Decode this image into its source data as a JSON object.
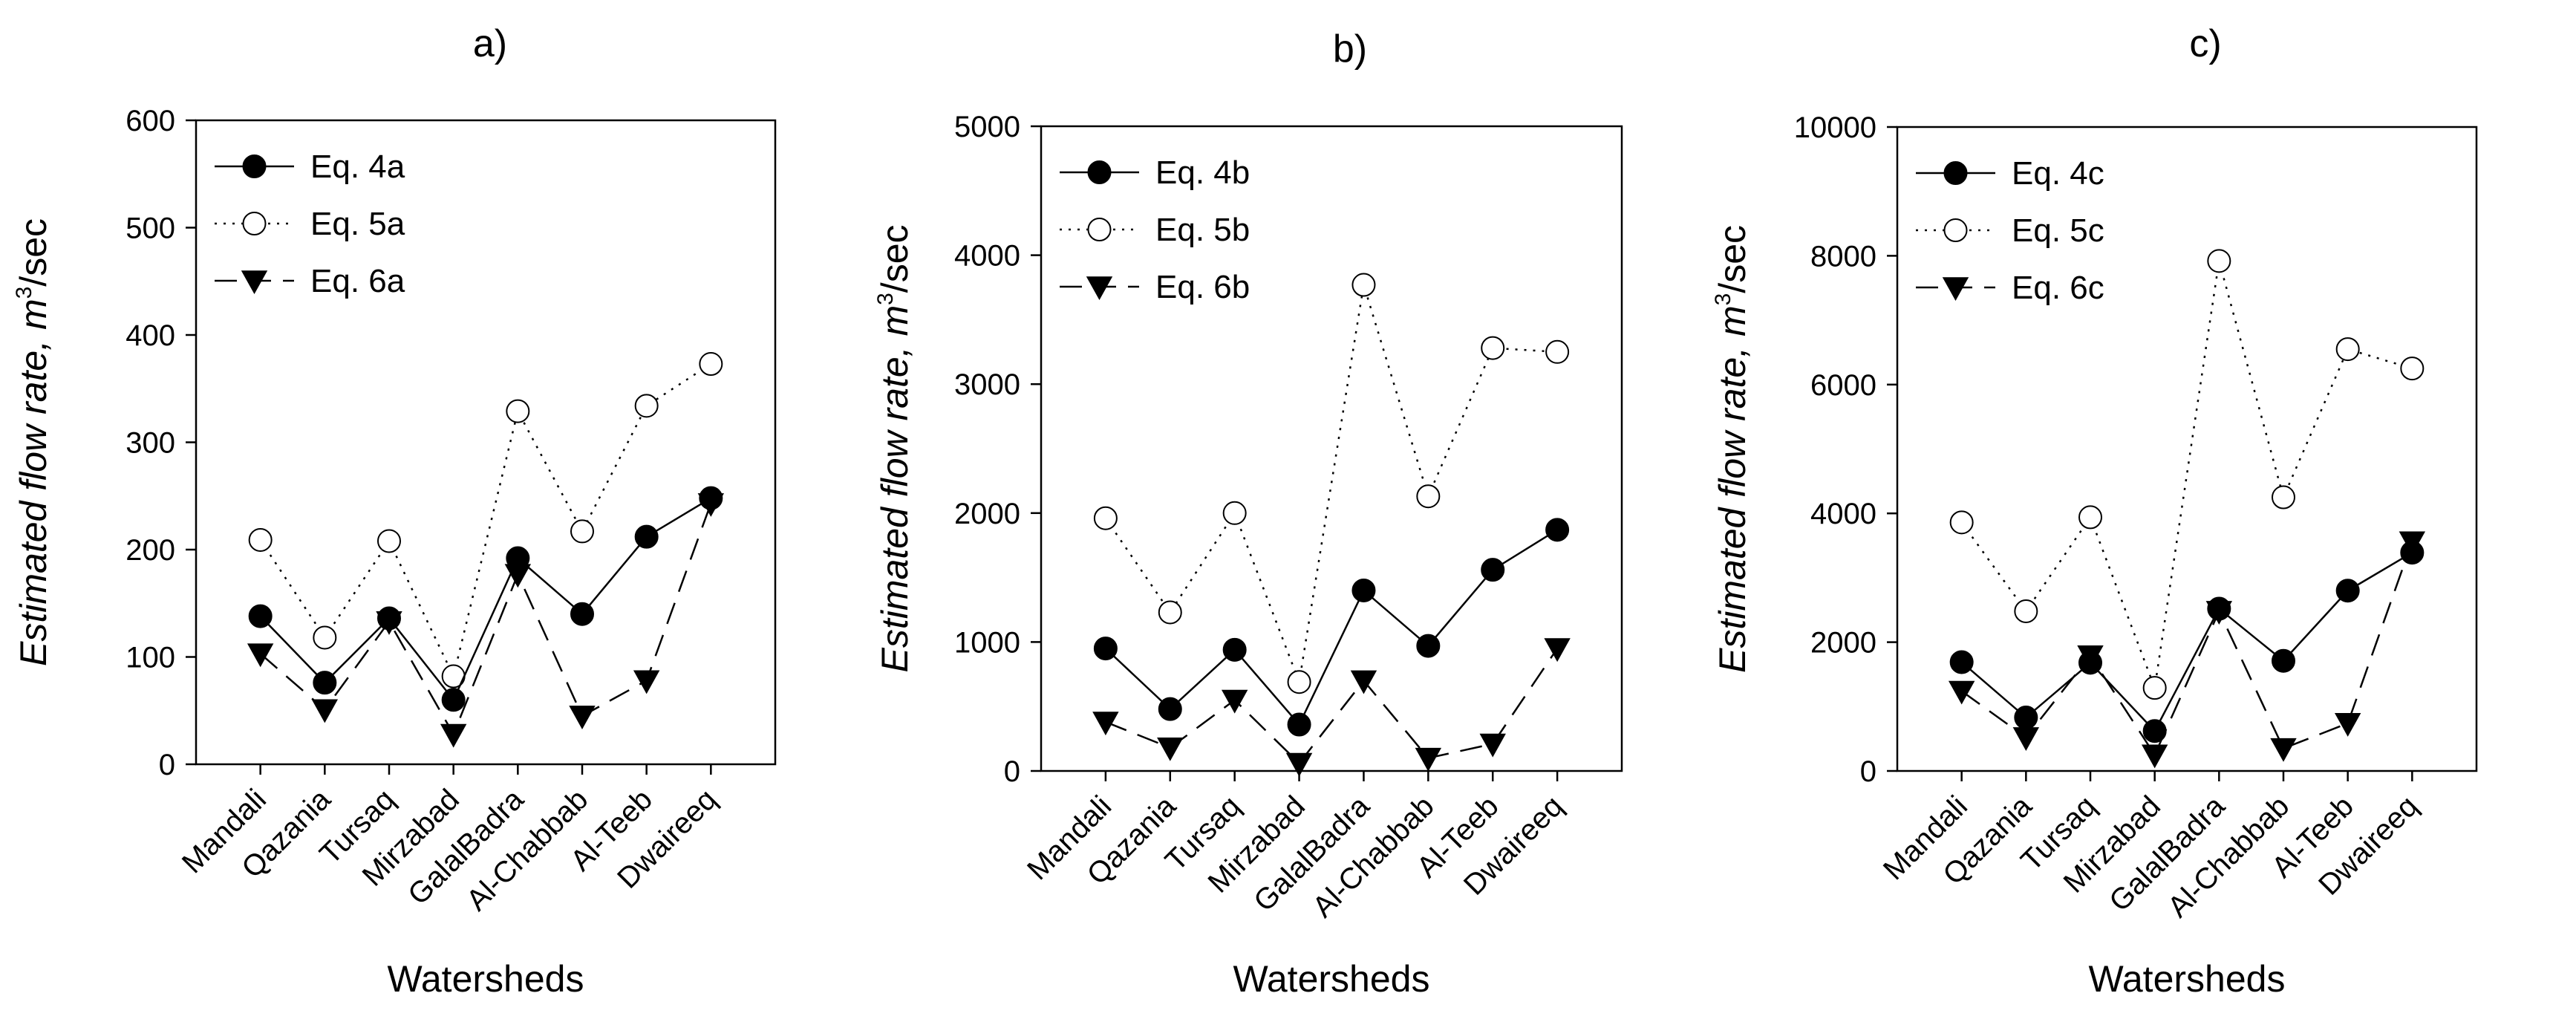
{
  "chart_data": [
    {
      "type": "line",
      "title": "a)",
      "xlabel": "Watersheds",
      "ylabel": "Estimated flow rate, m",
      "ylabel_sup": "3",
      "ylabel_tail": "/sec",
      "categories": [
        "Mandali",
        "Qazania",
        "Tursaq",
        "Mirzabad",
        "GalalBadra",
        "Al-Chabbab",
        "Al-Teeb",
        "Dwaireeq"
      ],
      "ylim": [
        0,
        600
      ],
      "yticks": [
        0,
        100,
        200,
        300,
        400,
        500,
        600
      ],
      "legend_position": "top-left",
      "series": [
        {
          "name": "Eq. 4a",
          "style": "solid",
          "marker": "filled-circle",
          "values": [
            138,
            76,
            136,
            60,
            192,
            140,
            212,
            248
          ]
        },
        {
          "name": "Eq. 5a",
          "style": "dotted",
          "marker": "open-circle",
          "values": [
            209,
            118,
            208,
            82,
            329,
            217,
            334,
            373
          ]
        },
        {
          "name": "Eq. 6a",
          "style": "dashed",
          "marker": "filled-triangle-down",
          "values": [
            103,
            51,
            133,
            28,
            177,
            45,
            78,
            243
          ]
        }
      ]
    },
    {
      "type": "line",
      "title": "b)",
      "xlabel": "Watersheds",
      "ylabel": "Estimated flow rate, m",
      "ylabel_sup": "3",
      "ylabel_tail": "/sec",
      "categories": [
        "Mandali",
        "Qazania",
        "Tursaq",
        "Mirzabad",
        "GalalBadra",
        "Al-Chabbab",
        "Al-Teeb",
        "Dwaireeq"
      ],
      "ylim": [
        0,
        5000
      ],
      "yticks": [
        0,
        1000,
        2000,
        3000,
        4000,
        5000
      ],
      "legend_position": "top-left",
      "series": [
        {
          "name": "Eq. 4b",
          "style": "solid",
          "marker": "filled-circle",
          "values": [
            950,
            480,
            940,
            360,
            1400,
            970,
            1560,
            1870
          ]
        },
        {
          "name": "Eq. 5b",
          "style": "dotted",
          "marker": "open-circle",
          "values": [
            1960,
            1230,
            2000,
            690,
            3770,
            2130,
            3280,
            3250
          ]
        },
        {
          "name": "Eq. 6b",
          "style": "dashed",
          "marker": "filled-triangle-down",
          "values": [
            380,
            180,
            550,
            60,
            700,
            100,
            210,
            950
          ]
        }
      ]
    },
    {
      "type": "line",
      "title": "c)",
      "xlabel": "Watersheds",
      "ylabel": "Estimated flow rate, m",
      "ylabel_sup": "3",
      "ylabel_tail": "/sec",
      "categories": [
        "Mandali",
        "Qazania",
        "Tursaq",
        "Mirzabad",
        "GalalBadra",
        "Al-Chabbab",
        "Al-Teeb",
        "Dwaireeq"
      ],
      "ylim": [
        0,
        10000
      ],
      "yticks": [
        0,
        2000,
        4000,
        6000,
        8000,
        10000
      ],
      "legend_position": "top-left",
      "series": [
        {
          "name": "Eq. 4c",
          "style": "solid",
          "marker": "filled-circle",
          "values": [
            1690,
            830,
            1680,
            620,
            2520,
            1710,
            2800,
            3390
          ]
        },
        {
          "name": "Eq. 5c",
          "style": "dotted",
          "marker": "open-circle",
          "values": [
            3860,
            2480,
            3940,
            1290,
            7920,
            4250,
            6550,
            6250
          ]
        },
        {
          "name": "Eq. 6c",
          "style": "dashed",
          "marker": "filled-triangle-down",
          "values": [
            1240,
            520,
            1790,
            250,
            2480,
            350,
            740,
            3560
          ]
        }
      ]
    }
  ]
}
